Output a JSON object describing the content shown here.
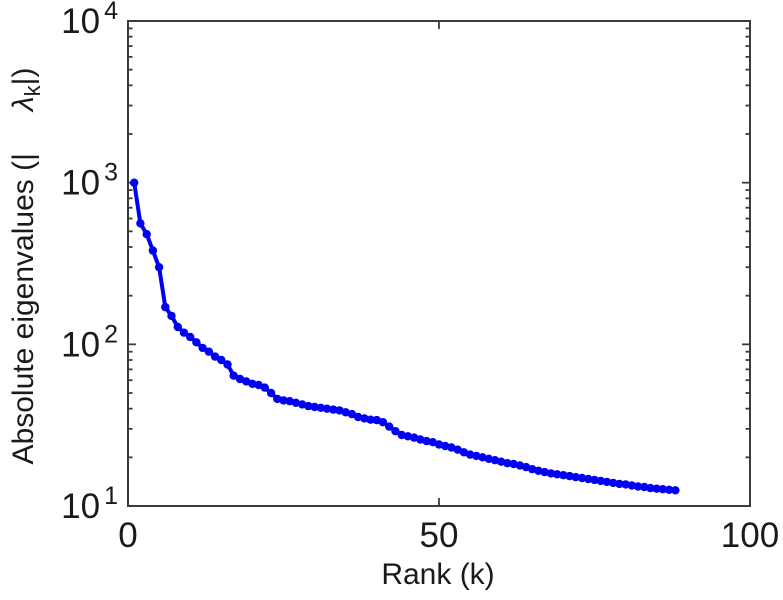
{
  "colors": {
    "line": "#0000F2",
    "axis": "#3b3b3b",
    "text": "#1a1a1a",
    "background": "#ffffff"
  },
  "labels": {
    "xlabel": "Rank (k)",
    "ylabel_prefix": "Absolute eigenvalues (|",
    "ylabel_lambda": "λ",
    "ylabel_subscript": "k",
    "ylabel_suffix": "|)",
    "y_tick_base": "10"
  },
  "chart_data": {
    "type": "line",
    "title": "",
    "xlabel": "Rank (k)",
    "ylabel": "Absolute eigenvalues (|λ_k|)",
    "x_scale": "linear",
    "y_scale": "log",
    "xlim": [
      0,
      100
    ],
    "ylim": [
      10,
      10000
    ],
    "x_ticks": [
      0,
      50,
      100
    ],
    "y_tick_exponents": [
      1,
      2,
      3,
      4
    ],
    "y_minor_ticks": true,
    "grid": false,
    "legend": null,
    "marker": "dot",
    "series": [
      {
        "name": "absolute-eigenvalues",
        "x": [
          1,
          2,
          3,
          4,
          5,
          6,
          7,
          8,
          9,
          10,
          11,
          12,
          13,
          14,
          15,
          16,
          17,
          18,
          19,
          20,
          21,
          22,
          23,
          24,
          25,
          26,
          27,
          28,
          29,
          30,
          31,
          32,
          33,
          34,
          35,
          36,
          37,
          38,
          39,
          40,
          41,
          42,
          43,
          44,
          45,
          46,
          47,
          48,
          49,
          50,
          51,
          52,
          53,
          54,
          55,
          56,
          57,
          58,
          59,
          60,
          61,
          62,
          63,
          64,
          65,
          66,
          67,
          68,
          69,
          70,
          71,
          72,
          73,
          74,
          75,
          76,
          77,
          78,
          79,
          80,
          81,
          82,
          83,
          84,
          85,
          86,
          87,
          88
        ],
        "y": [
          1000,
          560,
          480,
          380,
          300,
          170,
          150,
          128,
          118,
          111,
          103,
          95,
          90,
          84,
          80,
          75,
          64,
          61,
          59,
          57,
          56,
          54,
          50,
          46,
          45,
          44.5,
          43.5,
          42.5,
          41.5,
          41,
          40.5,
          40,
          39.5,
          39,
          38,
          37,
          35.5,
          34.8,
          34.2,
          34,
          33,
          31,
          29,
          27.5,
          27,
          26.5,
          25.8,
          25.2,
          24.8,
          24,
          23.5,
          23,
          22.3,
          21.5,
          20.8,
          20.4,
          20,
          19.6,
          19.2,
          18.8,
          18.4,
          18.2,
          17.8,
          17.4,
          16.9,
          16.5,
          16.2,
          15.9,
          15.7,
          15.5,
          15.3,
          15.1,
          14.9,
          14.7,
          14.5,
          14.3,
          14.1,
          13.9,
          13.7,
          13.6,
          13.4,
          13.2,
          13.1,
          12.9,
          12.8,
          12.7,
          12.6,
          12.5
        ]
      }
    ]
  }
}
